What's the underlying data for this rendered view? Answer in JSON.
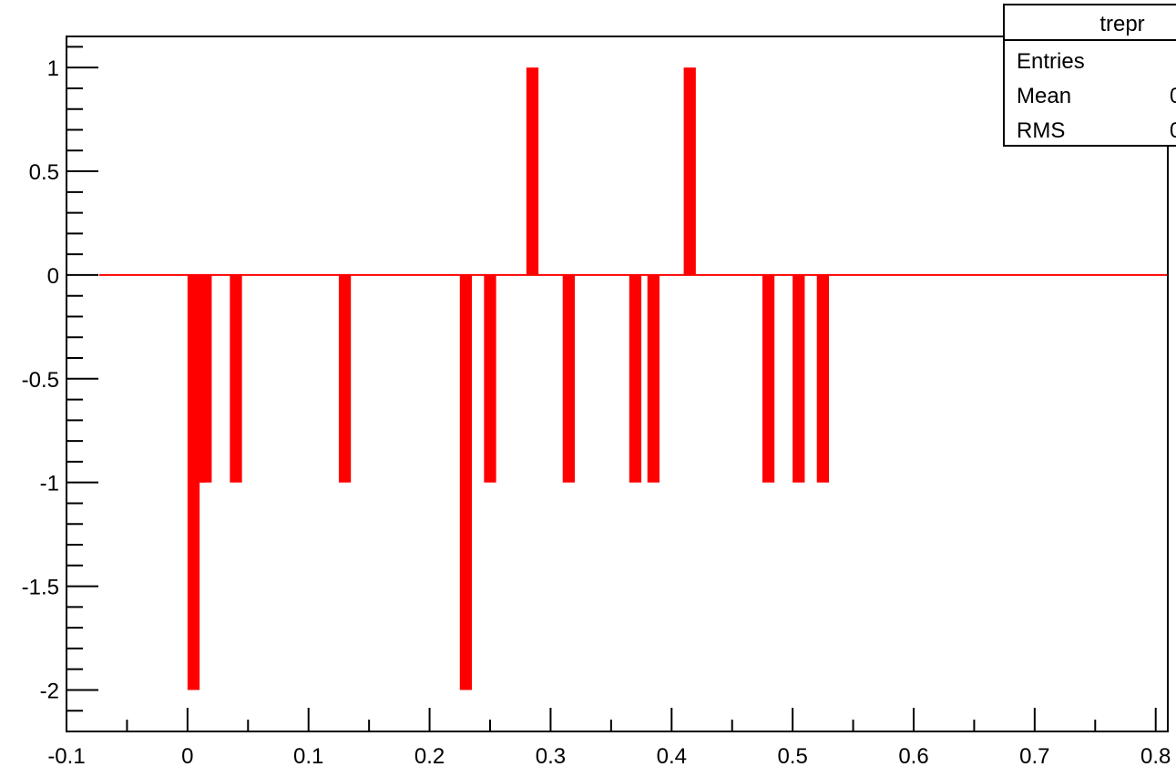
{
  "chart_data": {
    "type": "bar",
    "title": "",
    "xlabel": "",
    "ylabel": "",
    "xlim": [
      -0.1,
      0.81
    ],
    "ylim": [
      -2.2,
      1.15
    ],
    "bin_width": 0.01,
    "x": [
      0.0,
      0.005,
      0.01,
      0.015,
      0.04,
      0.13,
      0.23,
      0.25,
      0.285,
      0.315,
      0.37,
      0.385,
      0.415,
      0.48,
      0.505,
      0.525
    ],
    "values": [
      0,
      -2,
      -1,
      -1,
      -1,
      -1,
      -2,
      -1,
      1,
      -1,
      -1,
      -1,
      1,
      -1,
      -1,
      -1
    ],
    "x_ticks": [
      "-0.1",
      "0",
      "0.1",
      "0.2",
      "0.3",
      "0.4",
      "0.5",
      "0.6",
      "0.7",
      "0.8"
    ],
    "x_tick_values": [
      -0.1,
      0,
      0.1,
      0.2,
      0.3,
      0.4,
      0.5,
      0.6,
      0.7,
      0.8
    ],
    "y_ticks": [
      "1",
      "0.5",
      "0",
      "-0.5",
      "-1",
      "-1.5",
      "-2"
    ],
    "y_tick_values": [
      1,
      0.5,
      0,
      -0.5,
      -1,
      -1.5,
      -2
    ],
    "grid": false,
    "legend": "none",
    "bar_color": "#ff0000",
    "line_color": "#ff0000"
  },
  "stats_box": {
    "name": "trepr",
    "rows": [
      {
        "label": "Entries",
        "value": ""
      },
      {
        "label": "Mean",
        "value": "0"
      },
      {
        "label": "RMS",
        "value": "0"
      }
    ]
  }
}
